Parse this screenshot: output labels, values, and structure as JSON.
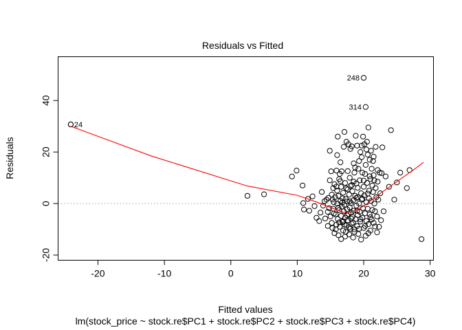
{
  "chart_data": {
    "type": "scatter",
    "title": "Residuals vs Fitted",
    "xlabel": "Fitted values",
    "sublabel": "lm(stock_price ~ stock.re$PC1 + stock.re$PC2 + stock.re$PC3 + stock.re$PC4)",
    "ylabel": "Residuals",
    "xlim": [
      -26.0,
      30.5
    ],
    "ylim": [
      -22,
      57
    ],
    "xticks": [
      -20,
      -10,
      0,
      10,
      20,
      30
    ],
    "yticks": [
      -20,
      0,
      20,
      40
    ],
    "xtick_labels": [
      "-20",
      "-10",
      "0",
      "10",
      "20",
      "30"
    ],
    "ytick_labels": [
      "-20",
      "0",
      "20",
      "40"
    ],
    "reference_line_y": 0,
    "labeled_points": [
      {
        "label": "248",
        "x": 20.0,
        "y": 48.8
      },
      {
        "label": "314",
        "x": 20.3,
        "y": 37.5
      },
      {
        "label": "24",
        "x": -24.1,
        "y": 30.7
      }
    ],
    "smooth_line": [
      {
        "x": -24.1,
        "y": 30.0
      },
      {
        "x": -12.0,
        "y": 18.5
      },
      {
        "x": 2.5,
        "y": 6.8
      },
      {
        "x": 10.0,
        "y": 3.2
      },
      {
        "x": 13.0,
        "y": 0.5
      },
      {
        "x": 15.0,
        "y": -1.5
      },
      {
        "x": 17.0,
        "y": -3.4
      },
      {
        "x": 18.5,
        "y": -3.0
      },
      {
        "x": 20.0,
        "y": -1.0
      },
      {
        "x": 22.0,
        "y": 3.0
      },
      {
        "x": 25.0,
        "y": 8.5
      },
      {
        "x": 28.0,
        "y": 14.0
      },
      {
        "x": 29.0,
        "y": 16.0
      }
    ],
    "points": [
      [
        -24.1,
        30.7
      ],
      [
        2.5,
        3.0
      ],
      [
        5.0,
        3.6
      ],
      [
        9.2,
        10.5
      ],
      [
        9.9,
        12.8
      ],
      [
        10.8,
        7.0
      ],
      [
        10.9,
        0.2
      ],
      [
        11.0,
        -2.3
      ],
      [
        11.6,
        1.8
      ],
      [
        11.8,
        -2.8
      ],
      [
        12.3,
        2.8
      ],
      [
        12.6,
        -1.0
      ],
      [
        12.9,
        -5.5
      ],
      [
        13.3,
        -6.8
      ],
      [
        13.5,
        -3.5
      ],
      [
        13.7,
        4.5
      ],
      [
        13.9,
        -0.8
      ],
      [
        14.1,
        0.9
      ],
      [
        14.2,
        -5.8
      ],
      [
        14.4,
        1.5
      ],
      [
        14.6,
        -3.2
      ],
      [
        14.7,
        2.2
      ],
      [
        14.8,
        -1.8
      ],
      [
        14.9,
        9.0
      ],
      [
        14.9,
        20.5
      ],
      [
        15.0,
        -5.0
      ],
      [
        15.1,
        12.5
      ],
      [
        15.2,
        -7.5
      ],
      [
        15.2,
        3.5
      ],
      [
        15.3,
        -9.5
      ],
      [
        15.4,
        6.0
      ],
      [
        15.4,
        -2.0
      ],
      [
        15.5,
        0.5
      ],
      [
        15.6,
        -11.5
      ],
      [
        15.6,
        7.5
      ],
      [
        15.7,
        2.5
      ],
      [
        15.8,
        -4.2
      ],
      [
        15.9,
        12.8
      ],
      [
        15.9,
        -8.2
      ],
      [
        16.0,
        0.0
      ],
      [
        16.0,
        5.0
      ],
      [
        16.1,
        26.0
      ],
      [
        16.1,
        -6.0
      ],
      [
        16.2,
        -12.3
      ],
      [
        16.2,
        3.0
      ],
      [
        16.3,
        -2.5
      ],
      [
        16.3,
        9.5
      ],
      [
        16.4,
        11.5
      ],
      [
        16.4,
        -9.0
      ],
      [
        16.5,
        1.0
      ],
      [
        16.5,
        16.0
      ],
      [
        16.6,
        -4.8
      ],
      [
        16.6,
        6.5
      ],
      [
        16.7,
        -1.2
      ],
      [
        16.7,
        12.5
      ],
      [
        16.8,
        -7.2
      ],
      [
        16.8,
        2.0
      ],
      [
        16.9,
        -10.5
      ],
      [
        16.9,
        4.2
      ],
      [
        17.0,
        -3.0
      ],
      [
        17.0,
        22.0
      ],
      [
        17.1,
        27.8
      ],
      [
        17.1,
        -0.5
      ],
      [
        17.2,
        8.0
      ],
      [
        17.2,
        -5.5
      ],
      [
        17.3,
        -11.0
      ],
      [
        17.3,
        1.8
      ],
      [
        17.4,
        -8.5
      ],
      [
        17.4,
        24.0
      ],
      [
        17.5,
        0.8
      ],
      [
        17.5,
        -2.2
      ],
      [
        17.6,
        5.5
      ],
      [
        17.6,
        -6.5
      ],
      [
        17.7,
        23.0
      ],
      [
        17.7,
        -4.0
      ],
      [
        17.8,
        3.5
      ],
      [
        17.8,
        -12.0
      ],
      [
        17.9,
        -1.5
      ],
      [
        17.9,
        10.0
      ],
      [
        18.0,
        -9.8
      ],
      [
        18.0,
        6.8
      ],
      [
        18.1,
        -3.5
      ],
      [
        18.1,
        0.2
      ],
      [
        18.2,
        22.2
      ],
      [
        18.2,
        -7.8
      ],
      [
        18.3,
        4.8
      ],
      [
        18.3,
        -5.2
      ],
      [
        18.4,
        -13.2
      ],
      [
        18.4,
        1.2
      ],
      [
        18.5,
        8.5
      ],
      [
        18.5,
        -2.8
      ],
      [
        18.6,
        12.0
      ],
      [
        18.6,
        -10.0
      ],
      [
        18.7,
        14.0
      ],
      [
        18.7,
        3.0
      ],
      [
        18.8,
        -6.0
      ],
      [
        18.8,
        26.3
      ],
      [
        18.9,
        -0.8
      ],
      [
        18.9,
        7.8
      ],
      [
        19.0,
        -8.8
      ],
      [
        19.0,
        22.5
      ],
      [
        19.1,
        -4.5
      ],
      [
        19.1,
        2.5
      ],
      [
        19.2,
        13.5
      ],
      [
        19.2,
        -11.8
      ],
      [
        19.3,
        16.5
      ],
      [
        19.3,
        0.0
      ],
      [
        19.4,
        -3.2
      ],
      [
        19.4,
        9.0
      ],
      [
        19.5,
        20.0
      ],
      [
        19.5,
        -7.0
      ],
      [
        19.6,
        4.0
      ],
      [
        19.6,
        -14.0
      ],
      [
        19.7,
        22.5
      ],
      [
        19.7,
        1.5
      ],
      [
        19.8,
        -5.5
      ],
      [
        19.8,
        12.0
      ],
      [
        19.9,
        26.0
      ],
      [
        19.9,
        -1.8
      ],
      [
        20.0,
        6.5
      ],
      [
        20.0,
        -9.5
      ],
      [
        20.1,
        23.0
      ],
      [
        20.1,
        3.2
      ],
      [
        20.2,
        -3.8
      ],
      [
        20.2,
        11.5
      ],
      [
        20.3,
        -12.5
      ],
      [
        20.3,
        15.0
      ],
      [
        20.4,
        0.5
      ],
      [
        20.4,
        -6.8
      ],
      [
        20.5,
        8.0
      ],
      [
        20.5,
        24.0
      ],
      [
        20.6,
        -2.0
      ],
      [
        20.6,
        19.0
      ],
      [
        20.7,
        29.5
      ],
      [
        20.7,
        -8.0
      ],
      [
        20.8,
        5.0
      ],
      [
        20.8,
        2.0
      ],
      [
        20.9,
        -4.2
      ],
      [
        20.9,
        17.0
      ],
      [
        21.0,
        9.5
      ],
      [
        21.0,
        -10.5
      ],
      [
        21.1,
        20.5
      ],
      [
        21.1,
        1.0
      ],
      [
        21.2,
        -6.2
      ],
      [
        21.2,
        13.5
      ],
      [
        21.3,
        7.0
      ],
      [
        21.3,
        -2.5
      ],
      [
        21.4,
        16.5
      ],
      [
        21.4,
        4.5
      ],
      [
        21.5,
        -7.5
      ],
      [
        21.5,
        11.0
      ],
      [
        21.6,
        0.0
      ],
      [
        21.6,
        9.0
      ],
      [
        21.7,
        -3.0
      ],
      [
        21.8,
        22.0
      ],
      [
        21.8,
        6.0
      ],
      [
        21.9,
        2.5
      ],
      [
        22.0,
        -5.0
      ],
      [
        22.1,
        13.0
      ],
      [
        22.1,
        8.5
      ],
      [
        22.2,
        1.5
      ],
      [
        22.3,
        -9.0
      ],
      [
        22.4,
        12.0
      ],
      [
        22.5,
        4.0
      ],
      [
        22.6,
        -6.5
      ],
      [
        22.7,
        11.8
      ],
      [
        22.8,
        21.8
      ],
      [
        23.0,
        -3.0
      ],
      [
        23.3,
        10.5
      ],
      [
        23.8,
        6.5
      ],
      [
        24.1,
        28.5
      ],
      [
        24.6,
        1.5
      ],
      [
        25.0,
        8.2
      ],
      [
        25.5,
        12.0
      ],
      [
        26.5,
        6.0
      ],
      [
        26.9,
        13.0
      ],
      [
        28.7,
        -13.8
      ],
      [
        17.2,
        -12.8
      ],
      [
        16.6,
        -13.8
      ],
      [
        15.8,
        -10.0
      ],
      [
        16.3,
        -7.3
      ],
      [
        17.8,
        -9.2
      ],
      [
        18.6,
        -11.0
      ],
      [
        19.3,
        -9.8
      ],
      [
        20.7,
        -11.5
      ],
      [
        19.0,
        -2.8
      ],
      [
        18.1,
        -5.8
      ],
      [
        17.5,
        -4.6
      ],
      [
        16.9,
        -6.9
      ],
      [
        15.5,
        -3.9
      ],
      [
        16.2,
        -1.6
      ],
      [
        17.1,
        -8.1
      ],
      [
        18.4,
        -7.4
      ],
      [
        19.5,
        -6.1
      ],
      [
        20.2,
        -8.7
      ],
      [
        21.0,
        -5.3
      ],
      [
        15.3,
        1.6
      ],
      [
        16.8,
        0.4
      ],
      [
        17.9,
        0.9
      ],
      [
        18.9,
        2.2
      ],
      [
        19.8,
        1.9
      ],
      [
        20.6,
        3.9
      ],
      [
        15.9,
        6.6
      ],
      [
        16.5,
        8.7
      ],
      [
        17.4,
        5.9
      ],
      [
        18.2,
        7.2
      ],
      [
        19.1,
        6.1
      ],
      [
        20.0,
        8.9
      ],
      [
        20.9,
        10.6
      ],
      [
        17.6,
        12.6
      ],
      [
        18.5,
        15.6
      ],
      [
        19.7,
        18.0
      ],
      [
        16.0,
        18.8
      ],
      [
        18.0,
        21.2
      ],
      [
        20.4,
        21.0
      ],
      [
        21.5,
        18.2
      ],
      [
        14.6,
        -8.7
      ],
      [
        22.0,
        -11.2
      ],
      [
        21.7,
        -8.9
      ]
    ],
    "grid": false,
    "point_color": "#000000",
    "smooth_color": "#ff0000",
    "reference_color": "#bbbbbb"
  }
}
